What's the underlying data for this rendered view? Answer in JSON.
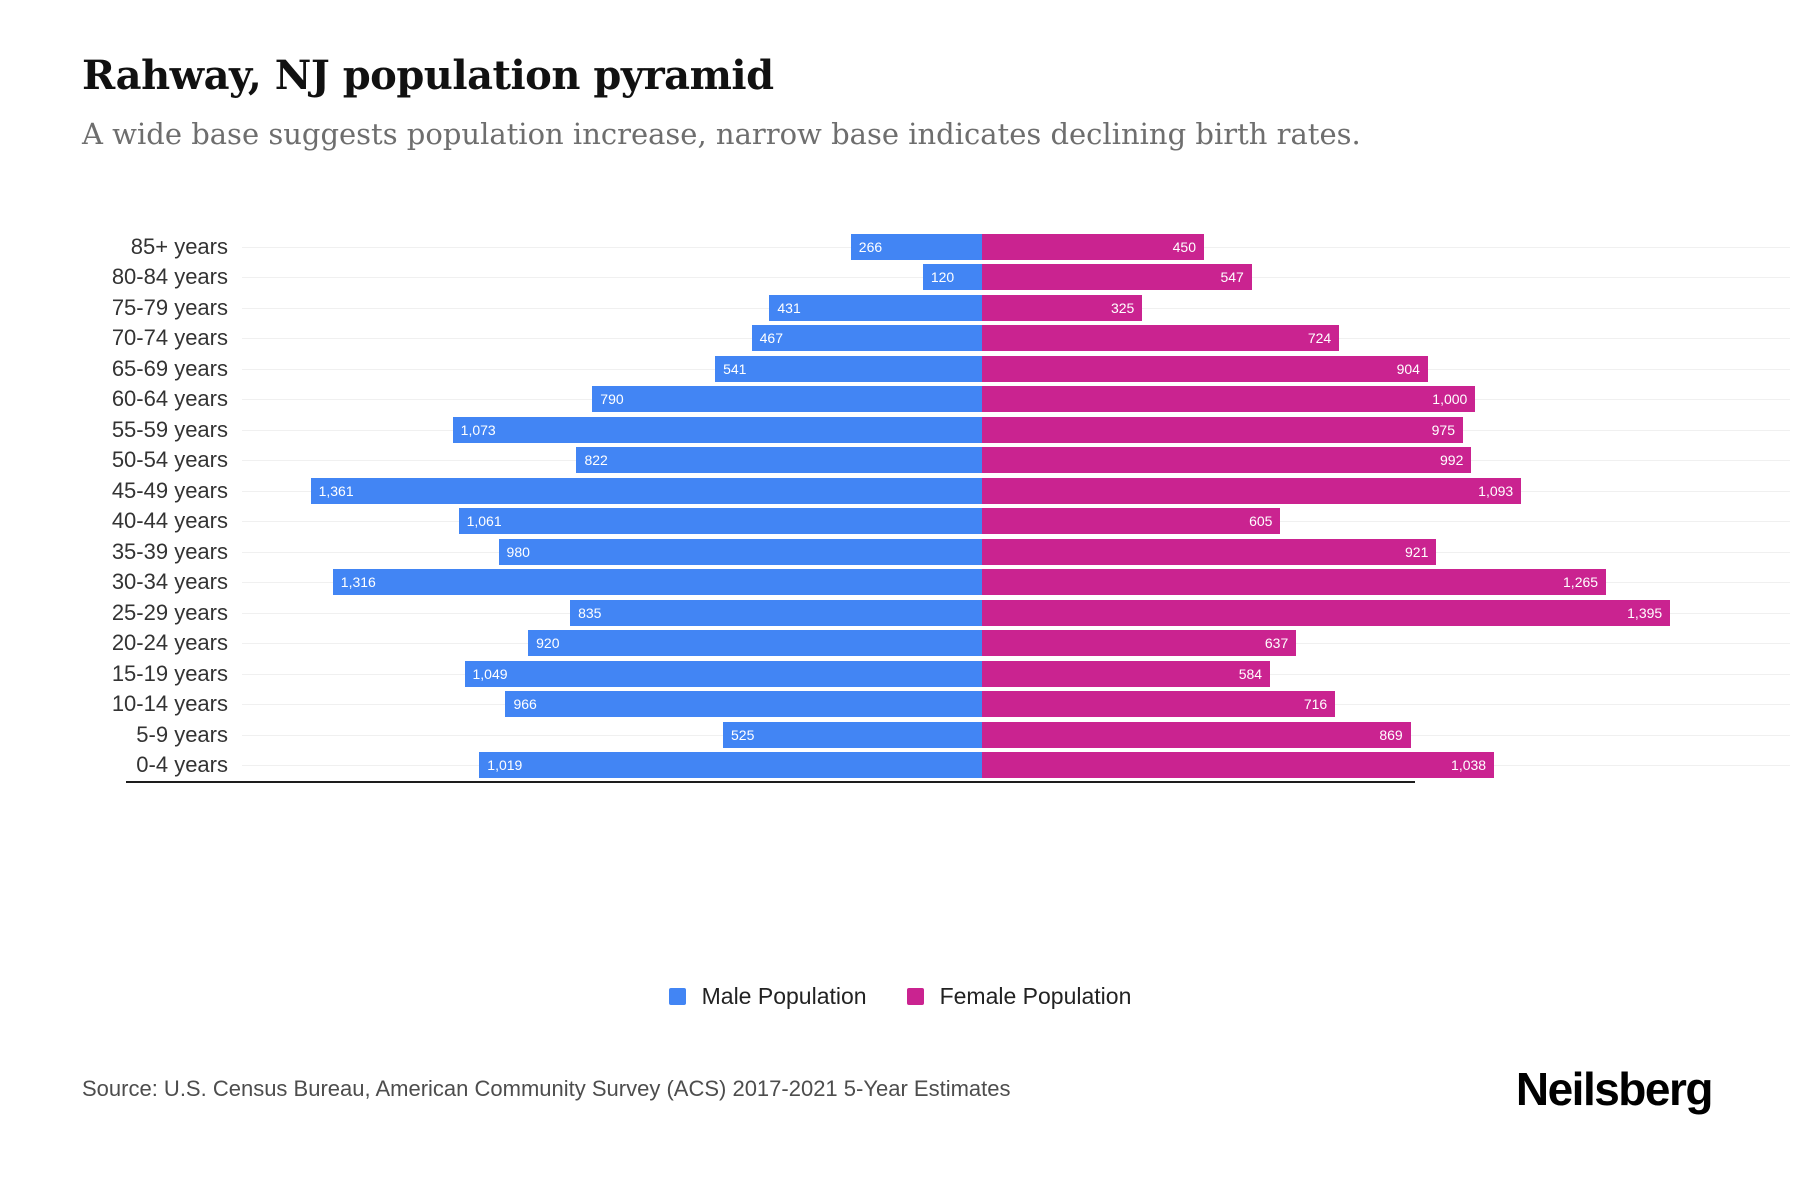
{
  "header": {
    "title": "Rahway, NJ population pyramid",
    "subtitle": "A wide base suggests population increase, narrow base indicates declining birth rates."
  },
  "chart_data": {
    "type": "bar",
    "variant": "population_pyramid",
    "title": "Rahway, NJ population pyramid",
    "orientation": "horizontal",
    "categories": [
      "85+ years",
      "80-84 years",
      "75-79 years",
      "70-74 years",
      "65-69 years",
      "60-64 years",
      "55-59 years",
      "50-54 years",
      "45-49 years",
      "40-44 years",
      "35-39 years",
      "30-34 years",
      "25-29 years",
      "20-24 years",
      "15-19 years",
      "10-14 years",
      "5-9 years",
      "0-4 years"
    ],
    "series": [
      {
        "name": "Male Population",
        "side": "left",
        "color": "#4285f4",
        "values": [
          266,
          120,
          431,
          467,
          541,
          790,
          1073,
          822,
          1361,
          1061,
          980,
          1316,
          835,
          920,
          1049,
          966,
          525,
          1019
        ],
        "labels": [
          "266",
          "120",
          "431",
          "467",
          "541",
          "790",
          "1,073",
          "822",
          "1,361",
          "1,061",
          "980",
          "1,316",
          "835",
          "920",
          "1,049",
          "966",
          "525",
          "1,019"
        ]
      },
      {
        "name": "Female Population",
        "side": "right",
        "color": "#ca2390",
        "values": [
          450,
          547,
          325,
          724,
          904,
          1000,
          975,
          992,
          1093,
          605,
          921,
          1265,
          1395,
          637,
          584,
          716,
          869,
          1038
        ],
        "labels": [
          "450",
          "547",
          "325",
          "724",
          "904",
          "1,000",
          "975",
          "992",
          "1,093",
          "605",
          "921",
          "1,265",
          "1,395",
          "637",
          "584",
          "716",
          "869",
          "1,038"
        ]
      }
    ],
    "axis_max": 1500,
    "grid": true,
    "grid_color": "#f0f0f0",
    "value_label_color": "#ffffff",
    "legend_position": "bottom"
  },
  "legend": {
    "items": [
      {
        "label": "Male Population",
        "color": "#4285f4"
      },
      {
        "label": "Female Population",
        "color": "#ca2390"
      }
    ]
  },
  "footer": {
    "source": "Source: U.S. Census Bureau, American Community Survey (ACS) 2017-2021 5-Year Estimates",
    "brand": "Neilsberg"
  }
}
